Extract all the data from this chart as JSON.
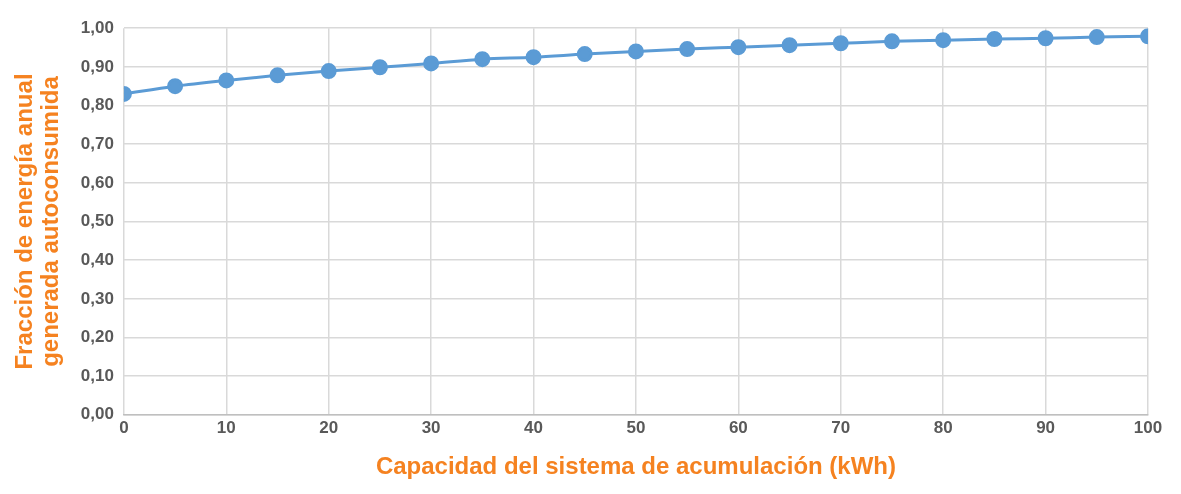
{
  "chart_data": {
    "type": "line",
    "xlabel": "Capacidad del sistema de acumulación (kWh)",
    "ylabel": "Fracción de energía anual generada autoconsumida",
    "x": [
      0,
      5,
      10,
      15,
      20,
      25,
      30,
      35,
      40,
      45,
      50,
      55,
      60,
      65,
      70,
      75,
      80,
      85,
      90,
      95,
      100
    ],
    "series": [
      {
        "color": "#5b9bd5",
        "values": [
          0.83,
          0.85,
          0.865,
          0.878,
          0.889,
          0.899,
          0.909,
          0.92,
          0.925,
          0.933,
          0.94,
          0.946,
          0.951,
          0.956,
          0.961,
          0.966,
          0.969,
          0.972,
          0.974,
          0.977,
          0.979
        ]
      }
    ],
    "xlim": [
      0,
      100
    ],
    "xticks": [
      0,
      10,
      20,
      30,
      40,
      50,
      60,
      70,
      80,
      90,
      100
    ],
    "ylim": [
      0,
      1
    ],
    "yticks": [
      {
        "value": 0,
        "label": "0,00"
      },
      {
        "value": 0.1,
        "label": "0,10"
      },
      {
        "value": 0.2,
        "label": "0,20"
      },
      {
        "value": 0.3,
        "label": "0,30"
      },
      {
        "value": 0.4,
        "label": "0,40"
      },
      {
        "value": 0.5,
        "label": "0,50"
      },
      {
        "value": 0.6,
        "label": "0,60"
      },
      {
        "value": 0.7,
        "label": "0,70"
      },
      {
        "value": 0.8,
        "label": "0,80"
      },
      {
        "value": 0.9,
        "label": "0,90"
      },
      {
        "value": 1,
        "label": "1,00"
      }
    ],
    "grid": true,
    "marker": "circle",
    "line_style": "solid",
    "legend": false
  }
}
